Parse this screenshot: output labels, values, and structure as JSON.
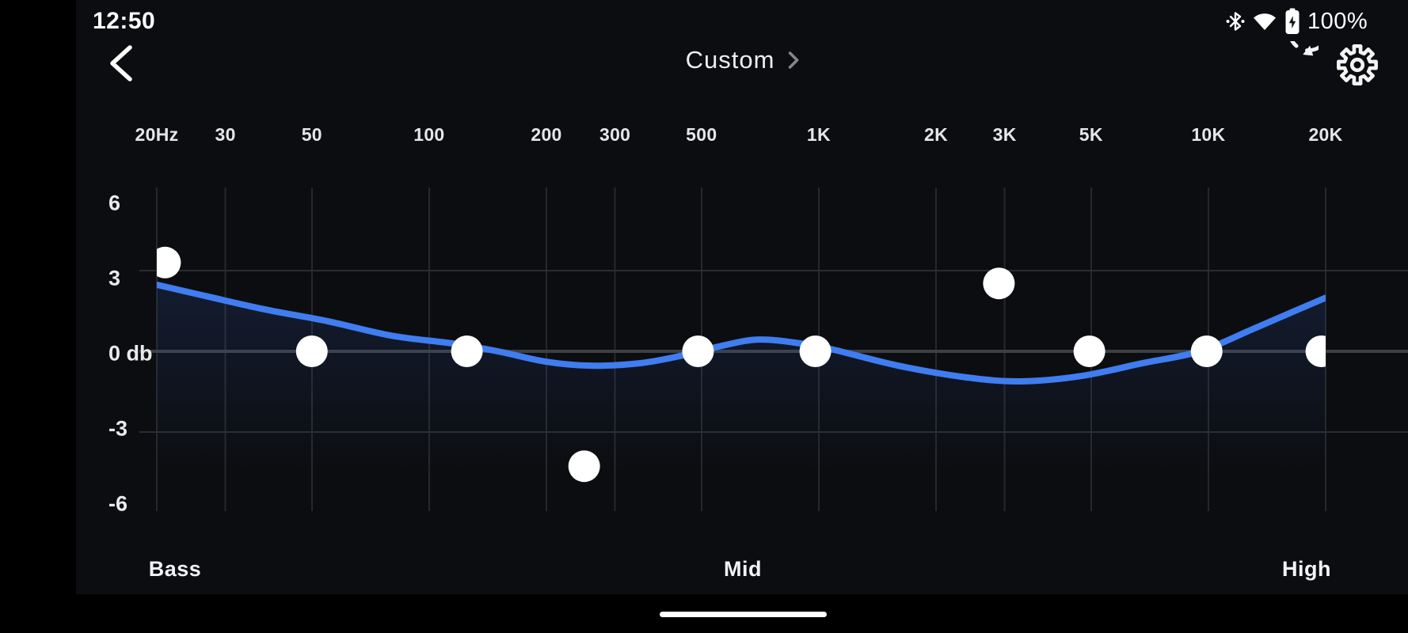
{
  "status_bar": {
    "time": "12:50",
    "battery_percent": "100%",
    "icons": [
      "bluetooth-icon",
      "wifi-icon",
      "battery-icon"
    ]
  },
  "header": {
    "title": "Custom",
    "back_icon": "back-chevron-icon",
    "reset_icon": "reset-icon",
    "settings_icon": "gear-icon"
  },
  "equalizer": {
    "band_sections": [
      "Bass",
      "Mid",
      "High"
    ],
    "unit_label": "db"
  },
  "chart_data": {
    "type": "line",
    "title": "Custom equalizer curve",
    "x_axis": {
      "scale": "log",
      "min_hz": 20,
      "max_hz": 20000,
      "ticks": [
        {
          "label": "20Hz",
          "hz": 20
        },
        {
          "label": "30",
          "hz": 30
        },
        {
          "label": "50",
          "hz": 50
        },
        {
          "label": "100",
          "hz": 100
        },
        {
          "label": "200",
          "hz": 200
        },
        {
          "label": "300",
          "hz": 300
        },
        {
          "label": "500",
          "hz": 500
        },
        {
          "label": "1K",
          "hz": 1000
        },
        {
          "label": "2K",
          "hz": 2000
        },
        {
          "label": "3K",
          "hz": 3000
        },
        {
          "label": "5K",
          "hz": 5000
        },
        {
          "label": "10K",
          "hz": 10000
        },
        {
          "label": "20K",
          "hz": 20000
        }
      ]
    },
    "y_axis": {
      "label": "db",
      "range_db": [
        -6,
        6
      ],
      "ticks": [
        {
          "label": "6",
          "db": 6
        },
        {
          "label": "3",
          "db": 3
        },
        {
          "label": "0 db",
          "db": 0
        },
        {
          "label": "-3",
          "db": -3
        },
        {
          "label": "-6",
          "db": -6
        }
      ],
      "gridlines_db": [
        3,
        0,
        -3
      ]
    },
    "handles": [
      {
        "hz": 21,
        "gain_db": 3.4
      },
      {
        "hz": 50,
        "gain_db": 0
      },
      {
        "hz": 125,
        "gain_db": 0
      },
      {
        "hz": 250,
        "gain_db": -4.4
      },
      {
        "hz": 490,
        "gain_db": 0
      },
      {
        "hz": 980,
        "gain_db": 0
      },
      {
        "hz": 2900,
        "gain_db": 2.6
      },
      {
        "hz": 4950,
        "gain_db": 0
      },
      {
        "hz": 9900,
        "gain_db": 0
      },
      {
        "hz": 19500,
        "gain_db": 0
      }
    ],
    "curve_points": [
      [
        20,
        2.55
      ],
      [
        27,
        2.1
      ],
      [
        38,
        1.6
      ],
      [
        55,
        1.15
      ],
      [
        80,
        0.6
      ],
      [
        115,
        0.3
      ],
      [
        150,
        0.0
      ],
      [
        200,
        -0.4
      ],
      [
        260,
        -0.55
      ],
      [
        350,
        -0.45
      ],
      [
        450,
        -0.15
      ],
      [
        560,
        0.2
      ],
      [
        700,
        0.45
      ],
      [
        900,
        0.3
      ],
      [
        1100,
        0.05
      ],
      [
        1600,
        -0.55
      ],
      [
        2400,
        -1.0
      ],
      [
        3300,
        -1.15
      ],
      [
        4700,
        -0.95
      ],
      [
        6800,
        -0.45
      ],
      [
        9500,
        0.0
      ],
      [
        13000,
        0.85
      ],
      [
        17000,
        1.6
      ],
      [
        20000,
        2.05
      ]
    ],
    "colors": {
      "curve": "#3F7DF0",
      "handle": "#FFFFFF",
      "background": "#0C0D10",
      "gridline": "#26282B",
      "zero_line": "#3C3F44"
    }
  }
}
